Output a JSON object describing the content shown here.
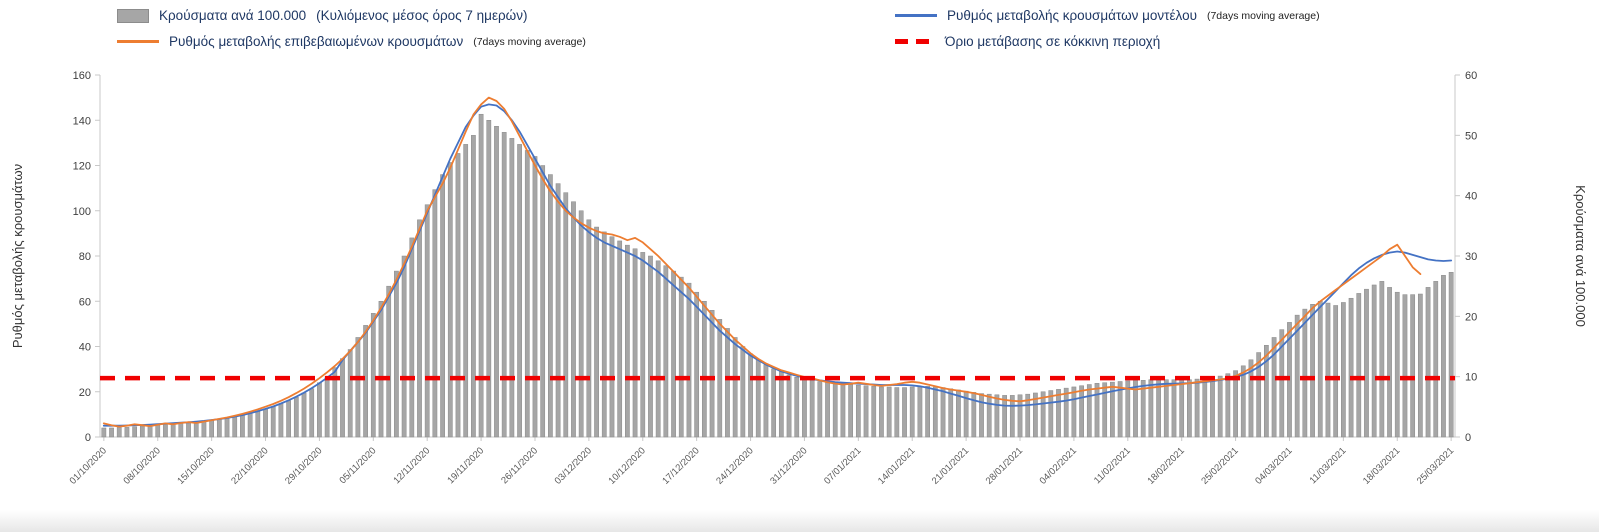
{
  "page": {
    "background": "#ffffff"
  },
  "legend": {
    "text_color": "#1f3864",
    "items": [
      {
        "id": "cases_per_100k",
        "swatch": "bar",
        "color": "#a6a6a6",
        "label": "Κρούσματα ανά 100.000",
        "suffix": "(Κυλιόμενος μέσος όρος 7 ημερών)"
      },
      {
        "id": "model_rate",
        "swatch": "line",
        "color": "#4472c4",
        "label": "Ρυθμός μεταβολής κρουσμάτων μοντέλου",
        "suffix": "(7days moving average)"
      },
      {
        "id": "confirmed_rate",
        "swatch": "line",
        "color": "#ed7d31",
        "label": "Ρυθμός μεταβολής επιβεβαιωμένων κρουσμάτων",
        "suffix": "(7days moving average)"
      },
      {
        "id": "red_threshold",
        "swatch": "dashed",
        "color": "#f00000",
        "label": "Όριο μετάβασης σε κόκκινη περιοχή",
        "suffix": ""
      }
    ]
  },
  "chart_data": {
    "type": "bar",
    "title": "",
    "left_axis": {
      "label": "Ρυθμός μεταβολής κρουσμάτων",
      "min": 0,
      "max": 160,
      "ticks": [
        0,
        20,
        40,
        60,
        80,
        100,
        120,
        140,
        160
      ]
    },
    "right_axis": {
      "label": "Κρούσματα ανά 100.000",
      "min": 0,
      "max": 60,
      "ticks": [
        0,
        10,
        20,
        30,
        40,
        50,
        60
      ]
    },
    "grid": false,
    "legend_position": "top",
    "x_tick_every": 7,
    "x_tick_labels": [
      "01/10/2020",
      "08/10/2020",
      "15/10/2020",
      "22/10/2020",
      "29/10/2020",
      "05/11/2020",
      "12/11/2020",
      "19/11/2020",
      "26/11/2020",
      "03/12/2020",
      "10/12/2020",
      "17/12/2020",
      "24/12/2020",
      "31/12/2020",
      "07/01/2021",
      "14/01/2021",
      "21/01/2021",
      "28/01/2021",
      "04/02/2021",
      "11/02/2021",
      "18/02/2021",
      "25/02/2021",
      "04/03/2021",
      "11/03/2021",
      "18/03/2021",
      "25/03/2021"
    ],
    "series": [
      {
        "id": "cases_per_100k",
        "name": "Κρούσματα ανά 100.000 (Κυλιόμενος μέσος όρος 7 ημερών)",
        "type": "bar",
        "axis": "right",
        "color": "#a6a6a6",
        "values": [
          1.5,
          1.5,
          1.6,
          1.6,
          1.7,
          1.8,
          1.9,
          2.0,
          2.1,
          2.2,
          2.3,
          2.4,
          2.5,
          2.6,
          2.8,
          3.0,
          3.2,
          3.4,
          3.6,
          3.9,
          4.2,
          4.6,
          5.0,
          5.5,
          6.0,
          6.6,
          7.3,
          8.0,
          9.0,
          10.0,
          11.5,
          13.0,
          14.5,
          16.5,
          18.5,
          20.5,
          22.5,
          25.0,
          27.5,
          30.0,
          33.0,
          36.0,
          38.5,
          41.0,
          43.5,
          45.5,
          47.0,
          48.5,
          50.0,
          53.5,
          52.5,
          51.5,
          50.5,
          49.5,
          48.5,
          47.5,
          46.5,
          45.0,
          43.5,
          42.0,
          40.5,
          39.0,
          37.5,
          36.0,
          34.8,
          34.0,
          33.2,
          32.5,
          31.8,
          31.2,
          30.6,
          30.0,
          29.2,
          28.4,
          27.5,
          26.5,
          25.5,
          24.0,
          22.5,
          21.0,
          19.5,
          18.0,
          16.5,
          15.0,
          13.8,
          12.8,
          12.0,
          11.3,
          10.8,
          10.3,
          9.9,
          9.6,
          9.4,
          9.2,
          9.0,
          8.9,
          8.8,
          8.7,
          8.6,
          8.5,
          8.4,
          8.3,
          8.3,
          8.2,
          8.2,
          8.3,
          8.4,
          8.4,
          8.3,
          8.2,
          8.0,
          7.8,
          7.6,
          7.4,
          7.2,
          7.1,
          7.0,
          6.9,
          6.9,
          7.0,
          7.1,
          7.3,
          7.5,
          7.7,
          7.9,
          8.1,
          8.3,
          8.5,
          8.7,
          8.9,
          9.0,
          9.1,
          9.2,
          9.3,
          9.4,
          9.4,
          9.5,
          9.5,
          9.5,
          9.5,
          9.5,
          9.5,
          9.6,
          9.7,
          9.9,
          10.1,
          10.5,
          11.0,
          11.8,
          12.8,
          14.0,
          15.2,
          16.5,
          17.8,
          19.0,
          20.2,
          21.2,
          22.0,
          22.5,
          22.2,
          21.8,
          22.3,
          23.0,
          23.8,
          24.5,
          25.2,
          25.8,
          24.8,
          24.0,
          23.6,
          23.6,
          23.7,
          24.8,
          25.8,
          26.8,
          27.3
        ]
      },
      {
        "id": "model_rate",
        "name": "Ρυθμός μεταβολής κρουσμάτων μοντέλου (7days moving average)",
        "type": "line",
        "axis": "left",
        "color": "#4472c4",
        "values": [
          5.0,
          5.0,
          5.0,
          5.1,
          5.2,
          5.3,
          5.5,
          5.7,
          5.9,
          6.1,
          6.3,
          6.5,
          6.8,
          7.1,
          7.5,
          7.9,
          8.4,
          9.0,
          9.7,
          10.5,
          11.4,
          12.4,
          13.5,
          14.8,
          16.2,
          17.8,
          19.6,
          21.6,
          23.8,
          26.2,
          28.8,
          34,
          38,
          42,
          46,
          51,
          56,
          62,
          68,
          75,
          83,
          91,
          99,
          107,
          115,
          123,
          130,
          137,
          142,
          146,
          147,
          146.5,
          144,
          140,
          135,
          129,
          123,
          117,
          111,
          106,
          101,
          97,
          93.5,
          90.5,
          88,
          86,
          84.5,
          83,
          81.5,
          80,
          78,
          75.5,
          73,
          70,
          67,
          64,
          61,
          57.5,
          54,
          50.5,
          47,
          44,
          41,
          38.5,
          36,
          34,
          32,
          30.5,
          29,
          28,
          27,
          26.3,
          25.6,
          25.0,
          24.6,
          24.2,
          24.0,
          23.8,
          23.6,
          23.4,
          23.2,
          23.0,
          23.0,
          23.0,
          23.0,
          22.8,
          22.4,
          21.8,
          21.0,
          20.2,
          19.2,
          18.2,
          17.2,
          16.2,
          15.4,
          14.7,
          14.2,
          13.9,
          13.8,
          13.9,
          14.1,
          14.4,
          14.8,
          15.2,
          15.6,
          16.1,
          16.7,
          17.4,
          18.1,
          18.8,
          19.5,
          20.2,
          20.9,
          21.5,
          22.1,
          22.6,
          23.0,
          23.3,
          23.5,
          23.6,
          23.7,
          23.8,
          24.0,
          24.3,
          24.7,
          25.2,
          25.8,
          26.5,
          27.5,
          29.0,
          31.0,
          33.5,
          36.5,
          40.0,
          43.5,
          47.0,
          50.5,
          54.0,
          57.5,
          61.0,
          64.5,
          68.0,
          71.5,
          74.5,
          77.0,
          79.0,
          80.5,
          81.5,
          82.0,
          81.5,
          80.5,
          79.5,
          78.5,
          78.0,
          77.8,
          78.0
        ]
      },
      {
        "id": "confirmed_rate",
        "name": "Ρυθμός μεταβολής επιβεβαιωμένων κρουσμάτων (7days moving average)",
        "type": "line",
        "axis": "left",
        "color": "#ed7d31",
        "values": [
          6.0,
          5.2,
          4.6,
          5.0,
          5.6,
          5.2,
          4.8,
          5.4,
          6.0,
          5.6,
          6.2,
          6.6,
          6.2,
          6.8,
          7.4,
          8.0,
          8.6,
          9.4,
          10.2,
          11.2,
          12.2,
          13.4,
          14.6,
          16.0,
          17.6,
          19.4,
          21.4,
          23.6,
          26.0,
          28.6,
          31.4,
          34.5,
          38,
          42,
          46.5,
          51.5,
          57,
          63,
          69.5,
          76.5,
          84,
          92,
          100,
          106,
          112,
          119,
          127,
          135,
          142.5,
          147,
          150,
          148.5,
          145,
          139.5,
          133,
          126.5,
          120,
          114,
          108.5,
          104,
          100,
          97,
          94.5,
          92.5,
          91,
          90,
          89.5,
          88.5,
          87,
          88,
          86,
          83,
          80,
          76.5,
          73,
          69.5,
          66,
          62,
          58,
          54,
          50,
          46.5,
          43,
          40,
          37,
          34.5,
          32.5,
          31,
          29.5,
          28.5,
          27.5,
          26.5,
          26,
          25,
          24.2,
          23.6,
          23.2,
          23.5,
          24,
          23.5,
          23,
          22.6,
          23,
          23.4,
          24,
          24.4,
          24,
          23.2,
          22.4,
          21.6,
          21,
          20.5,
          20,
          19.4,
          18.6,
          17.8,
          17,
          16.4,
          16,
          15.8,
          16.2,
          16.8,
          17.4,
          18,
          18.6,
          19.2,
          19.8,
          20.4,
          21,
          21.4,
          21.8,
          22.2,
          21.8,
          21.4,
          21,
          21.4,
          21.8,
          22.2,
          22.6,
          23,
          23.4,
          23.8,
          24.2,
          24.6,
          25,
          25.4,
          26,
          27,
          28.5,
          30.5,
          33,
          36,
          39.5,
          43,
          46.5,
          50,
          53.5,
          57,
          60,
          62.5,
          65,
          67.5,
          70,
          72.5,
          75,
          77.5,
          80,
          83,
          85,
          80,
          75,
          72,
          null,
          null,
          null,
          null
        ]
      },
      {
        "id": "red_threshold",
        "name": "Όριο μετάβασης σε κόκκινη περιοχή",
        "type": "threshold",
        "axis": "left",
        "color": "#f00000",
        "value": 26
      }
    ]
  }
}
